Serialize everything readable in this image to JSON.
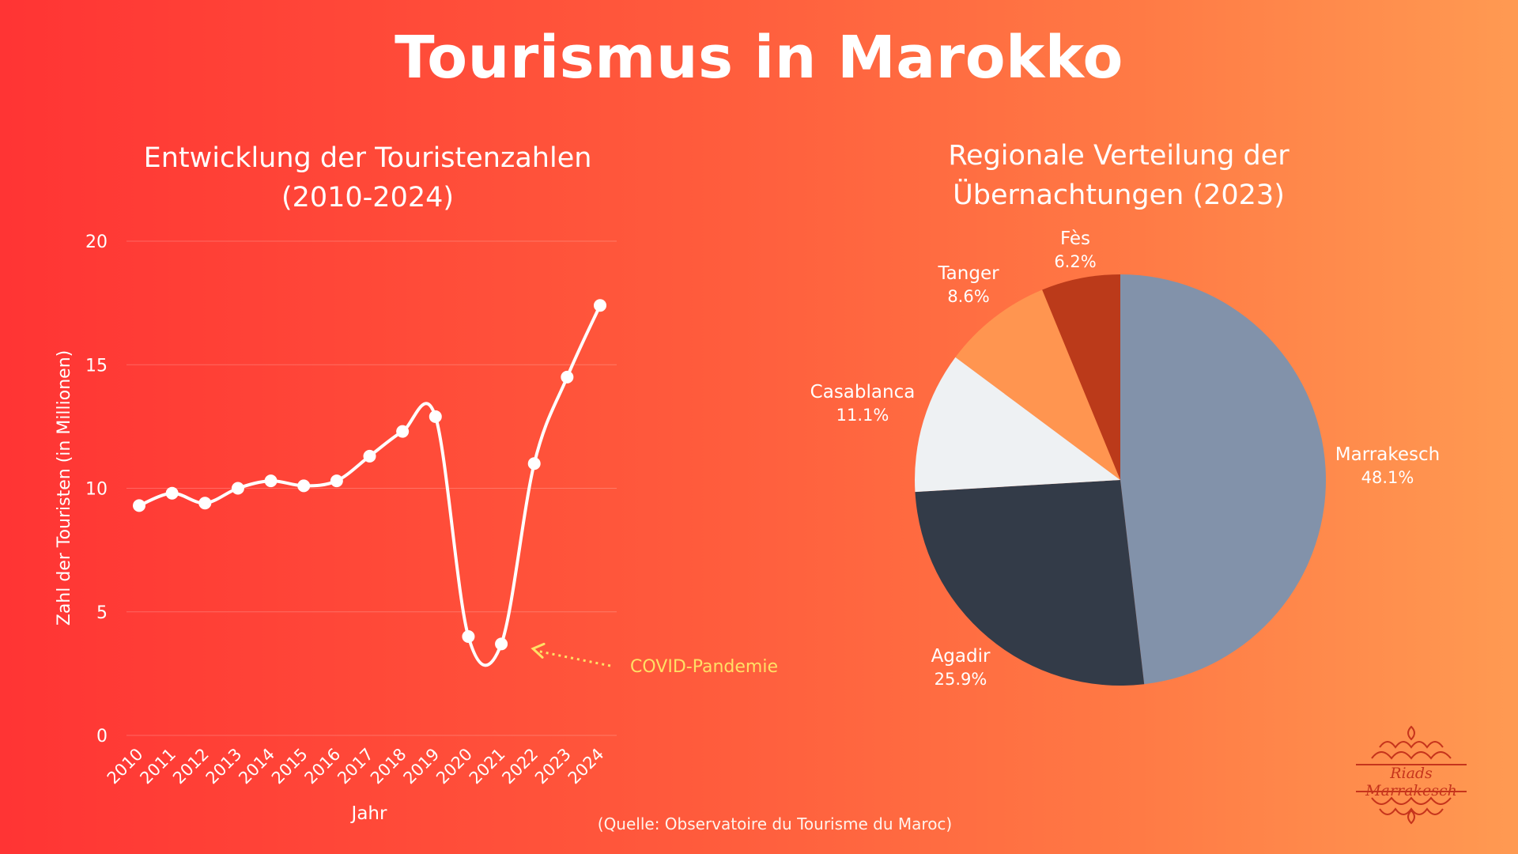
{
  "title": "Tourismus in Marokko",
  "source": "(Quelle: Observatoire du Tourisme du Maroc)",
  "logo_text": "Riads Marrakesch",
  "chart_data": [
    {
      "type": "line",
      "title_line1": "Entwicklung der Touristenzahlen",
      "title_line2": "(2010-2024)",
      "xlabel": "Jahr",
      "ylabel": "Zahl der Touristen (in Millionen)",
      "ylim": [
        0,
        20
      ],
      "yticks": [
        "0",
        "5",
        "10",
        "15",
        "20"
      ],
      "grid": true,
      "categories": [
        "2010",
        "2011",
        "2012",
        "2013",
        "2014",
        "2015",
        "2016",
        "2017",
        "2018",
        "2019",
        "2020",
        "2021",
        "2022",
        "2023",
        "2024"
      ],
      "values": [
        9.3,
        9.8,
        9.4,
        10.0,
        10.3,
        10.1,
        10.3,
        11.3,
        12.3,
        12.9,
        4.0,
        3.7,
        11.0,
        14.5,
        17.4
      ],
      "line_color": "#ffffff",
      "annotation": {
        "text": "COVID-Pandemie",
        "target_category": "2021",
        "color": "#ffe066"
      }
    },
    {
      "type": "pie",
      "title_line1": "Regionale Verteilung der",
      "title_line2": "Übernachtungen (2023)",
      "slices": [
        {
          "label": "Marrakesch",
          "value": 48.1,
          "pct_label": "48.1%",
          "color": "#8292aa"
        },
        {
          "label": "Agadir",
          "value": 25.9,
          "pct_label": "25.9%",
          "color": "#333b48"
        },
        {
          "label": "Casablanca",
          "value": 11.1,
          "pct_label": "11.1%",
          "color": "#eef1f3"
        },
        {
          "label": "Tanger",
          "value": 8.6,
          "pct_label": "8.6%",
          "color": "#ff9550"
        },
        {
          "label": "Fès",
          "value": 6.2,
          "pct_label": "6.2%",
          "color": "#bb3a1a"
        }
      ]
    }
  ]
}
